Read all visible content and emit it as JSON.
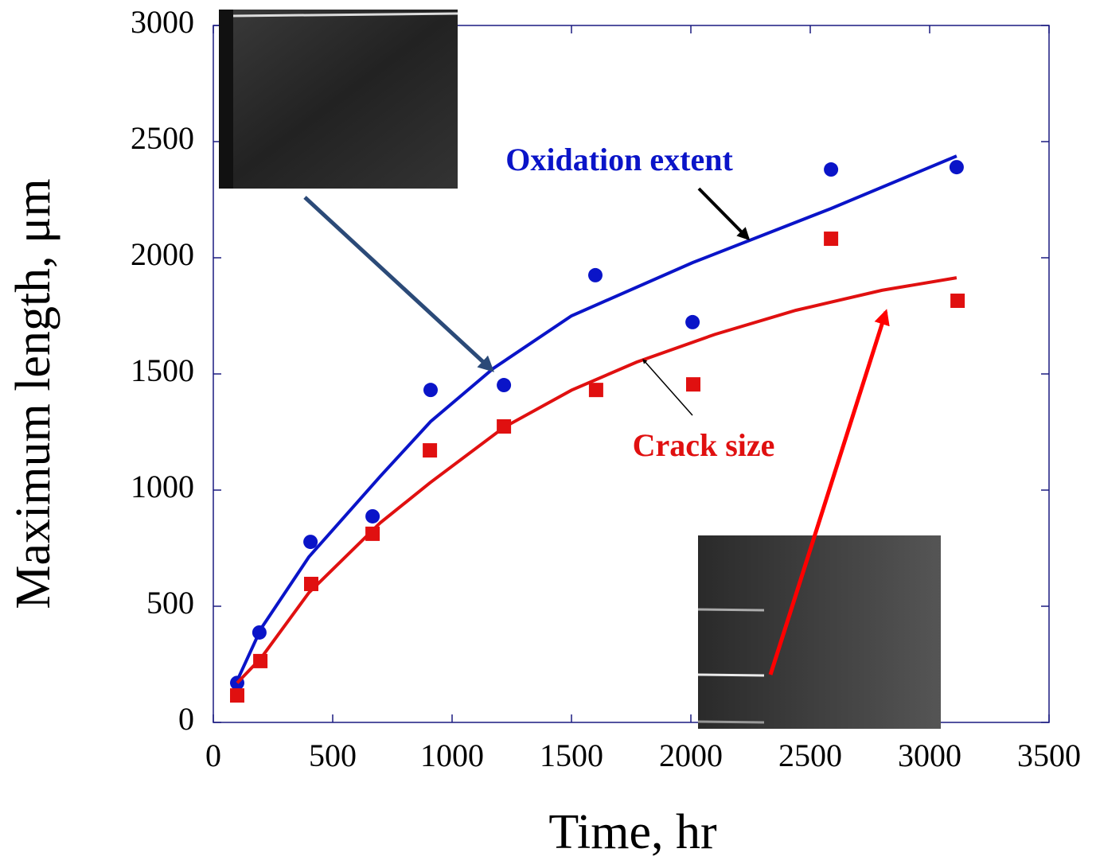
{
  "chart_data": {
    "type": "scatter",
    "x_label": "Time, hr",
    "y_label": "Maximum length, μm",
    "xlim": [
      0,
      3500
    ],
    "xticks": [
      0,
      500,
      1000,
      1500,
      2000,
      2500,
      3000,
      3500
    ],
    "ylim": [
      0,
      3000
    ],
    "yticks": [
      0,
      500,
      1000,
      1500,
      2000,
      2500,
      3000
    ],
    "series": [
      {
        "name": "Oxidation extent",
        "color": "#0a14c8",
        "marker": "circle",
        "x": [
          100,
          193,
          407,
          667,
          910,
          1217,
          1600,
          2007,
          2587,
          3113
        ],
        "values": [
          170,
          387,
          777,
          887,
          1431,
          1452,
          1925,
          1723,
          2380,
          2390
        ],
        "fit": {
          "x": [
            100,
            200,
            400,
            700,
            910,
            1173,
            1500,
            2007,
            2587,
            3113
          ],
          "values": [
            180,
            404,
            712,
            1060,
            1295,
            1524,
            1750,
            1979,
            2212,
            2438
          ]
        }
      },
      {
        "name": "Crack size",
        "color": "#e01010",
        "marker": "square",
        "x": [
          100,
          197,
          410,
          667,
          907,
          1217,
          1603,
          2010,
          2587,
          3117
        ],
        "values": [
          116,
          264,
          596,
          812,
          1171,
          1274,
          1431,
          1455,
          2082,
          1815
        ],
        "fit": {
          "x": [
            100,
            200,
            400,
            700,
            907,
            1217,
            1500,
            1773,
            2100,
            2440,
            2800,
            3113
          ],
          "values": [
            170,
            277,
            558,
            860,
            1031,
            1270,
            1430,
            1551,
            1670,
            1774,
            1860,
            1914
          ]
        }
      }
    ]
  }
}
